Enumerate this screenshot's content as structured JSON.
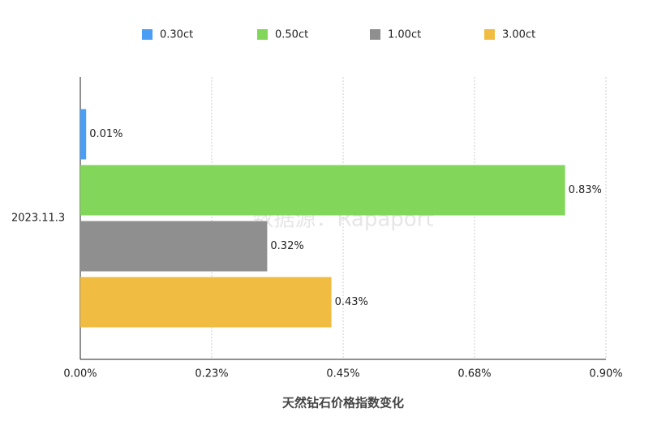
{
  "chart_data": {
    "type": "barh",
    "categories": [
      "2023.11.3"
    ],
    "series": [
      {
        "name": "0.30ct",
        "color": "#4a9ff5",
        "values": [
          0.01
        ],
        "value_labels": [
          "0.01%"
        ]
      },
      {
        "name": "0.50ct",
        "color": "#82d65a",
        "values": [
          0.83
        ],
        "value_labels": [
          "0.83%"
        ]
      },
      {
        "name": "1.00ct",
        "color": "#8f8f8f",
        "values": [
          0.32
        ],
        "value_labels": [
          "0.32%"
        ]
      },
      {
        "name": "3.00ct",
        "color": "#f0bc42",
        "values": [
          0.43
        ],
        "value_labels": [
          "0.43%"
        ]
      }
    ],
    "xlim": [
      0,
      0.9
    ],
    "xticks": [
      {
        "value": 0,
        "label": "0.00%"
      },
      {
        "value": 0.225,
        "label": "0.23%"
      },
      {
        "value": 0.45,
        "label": "0.45%"
      },
      {
        "value": 0.675,
        "label": "0.68%"
      },
      {
        "value": 0.9,
        "label": "0.90%"
      }
    ],
    "xlabel": "天然钻石价格指数变化",
    "watermark": "数据源：Rapaport",
    "grid": true,
    "legend": "top"
  }
}
